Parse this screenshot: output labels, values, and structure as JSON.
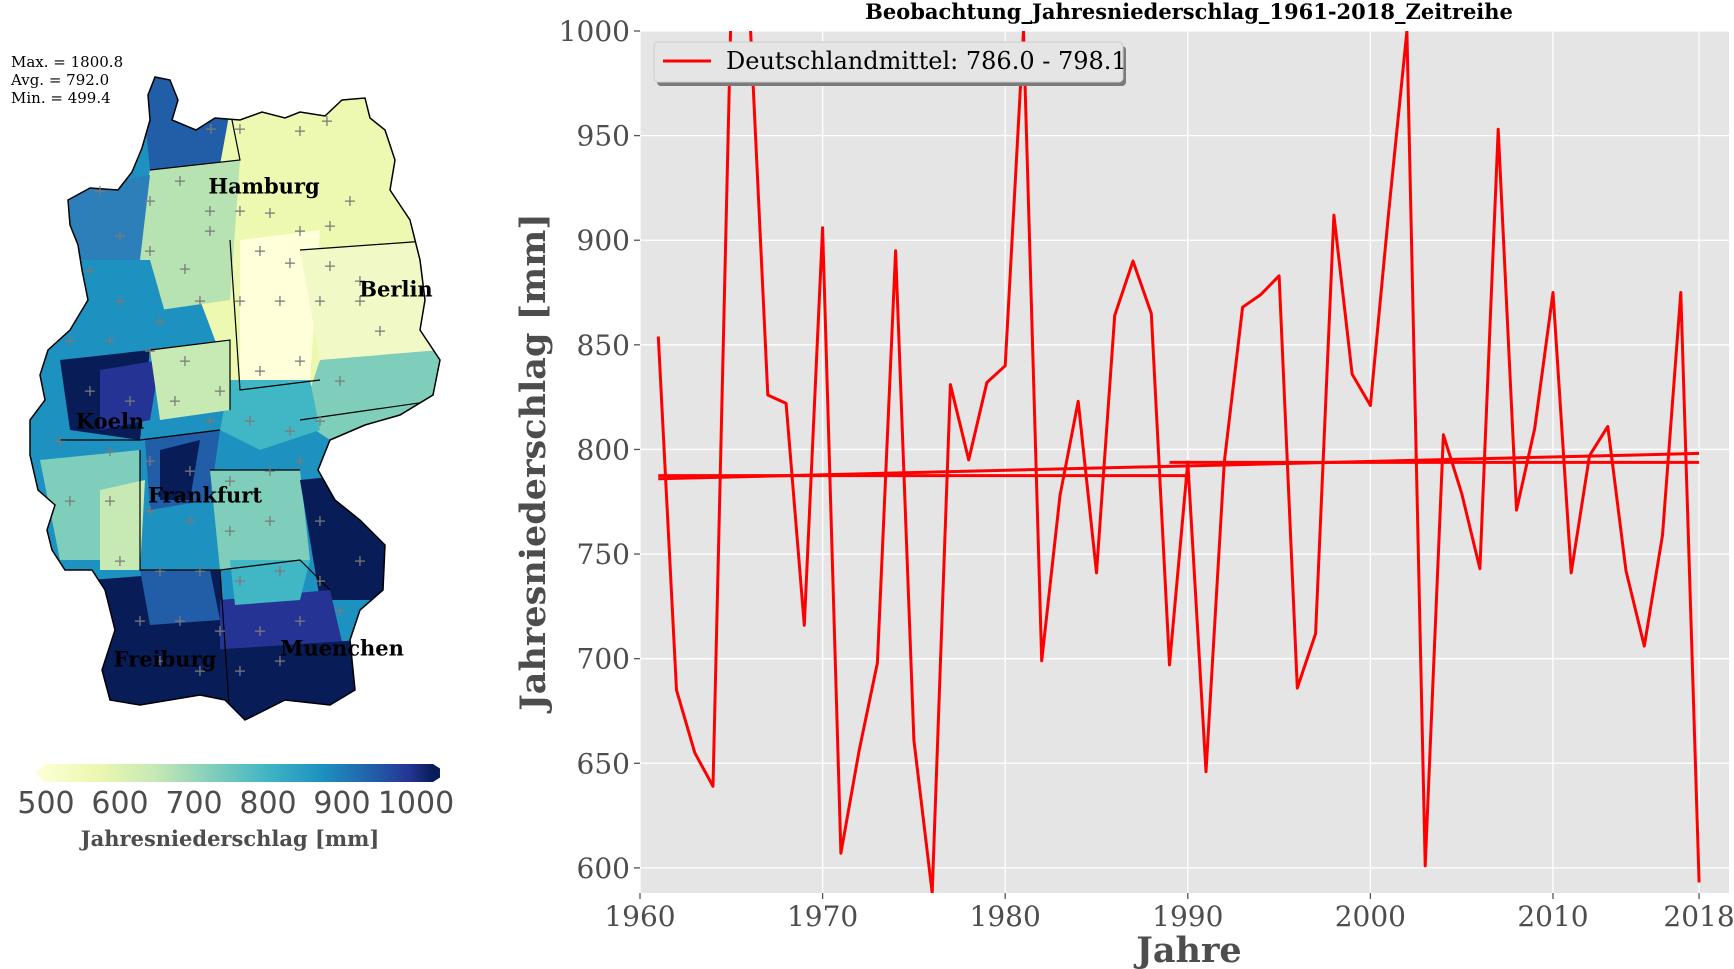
{
  "map": {
    "stats": [
      "Max. = 1800.8",
      "Avg. = 792.0",
      "Min. = 499.4"
    ],
    "cities": [
      {
        "name": "Hamburg"
      },
      {
        "name": "Berlin"
      },
      {
        "name": "Koeln"
      },
      {
        "name": "Frankfurt"
      },
      {
        "name": "Freiburg"
      },
      {
        "name": "Muenchen"
      }
    ],
    "colorbar": {
      "ticks": [
        "500",
        "600",
        "700",
        "800",
        "900",
        "1000"
      ],
      "label": "Jahresniederschlag [mm]",
      "colors": [
        "#ffffd9",
        "#c7e9b4",
        "#7fcdbb",
        "#41b6c4",
        "#1d91c0",
        "#225ea8",
        "#253494",
        "#081d58"
      ]
    }
  },
  "chart_data": {
    "type": "line",
    "title": "Beobachtung_Jahresniederschlag_1961-2018_Zeitreihe",
    "xlabel": "Jahre",
    "ylabel": "Jahresniederschlag [mm]",
    "xlim": [
      1960,
      2018
    ],
    "ylim": [
      588,
      1000
    ],
    "xticks": [
      1960,
      1970,
      1980,
      1990,
      2000,
      2010,
      2018
    ],
    "yticks": [
      600,
      650,
      700,
      750,
      800,
      850,
      900,
      950,
      1000
    ],
    "grid": true,
    "legend": {
      "position": "top-left",
      "label": "Deutschlandmittel: 786.0 - 798.1"
    },
    "color": "#ff0000",
    "series": [
      {
        "name": "Deutschlandmittel: 786.0 - 798.1",
        "x": [
          1961,
          1962,
          1963,
          1964,
          1965,
          1966,
          1967,
          1968,
          1969,
          1970,
          1971,
          1972,
          1973,
          1974,
          1975,
          1976,
          1977,
          1978,
          1979,
          1980,
          1981,
          1982,
          1983,
          1984,
          1985,
          1986,
          1987,
          1988,
          1989,
          1990,
          1991,
          1992,
          1993,
          1994,
          1995,
          1996,
          1997,
          1998,
          1999,
          2000,
          2001,
          2002,
          2003,
          2004,
          2005,
          2006,
          2007,
          2008,
          2009,
          2010,
          2011,
          2012,
          2013,
          2014,
          2015,
          2016,
          2017,
          2018
        ],
        "values": [
          854,
          685,
          655,
          639,
          1015,
          1010,
          826,
          822,
          716,
          906,
          607,
          656,
          698,
          895,
          661,
          588,
          831,
          795,
          832,
          840,
          1000,
          699,
          778,
          823,
          741,
          864,
          890,
          865,
          697,
          794,
          646,
          794,
          868,
          874,
          883,
          686,
          712,
          912,
          836,
          821,
          913,
          1000,
          601,
          807,
          779,
          743,
          953,
          771,
          810,
          875,
          741,
          797,
          811,
          742,
          706,
          759,
          875,
          593
        ]
      }
    ],
    "trend_lines": [
      {
        "x": [
          1961,
          2018
        ],
        "values": [
          786.0,
          798.1
        ]
      },
      {
        "x": [
          1961,
          1990
        ],
        "values": [
          787.5,
          787.5
        ]
      },
      {
        "x": [
          1989,
          2018
        ],
        "values": [
          793.8,
          793.8
        ]
      }
    ]
  }
}
